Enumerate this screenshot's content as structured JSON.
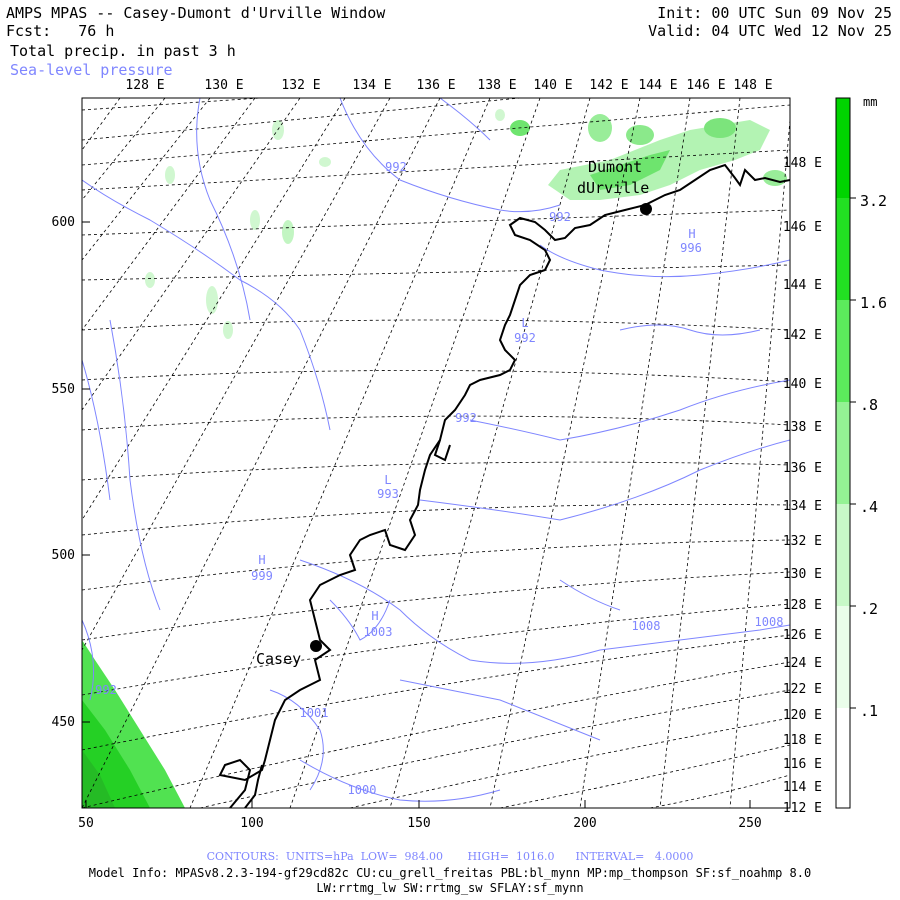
{
  "header": {
    "title": "AMPS MPAS -- Casey-Dumont d'Urville Window",
    "fcst_label": "Fcst:",
    "fcst_value": "76 h",
    "field": "Total precip. in past 3 h",
    "overlay": "Sea-level pressure",
    "init": "Init: 00 UTC Sun 09 Nov 25",
    "valid": "Valid: 04 UTC Wed 12 Nov 25"
  },
  "map": {
    "top_lon_labels": [
      "128 E",
      "130 E",
      "132 E",
      "134 E",
      "136 E",
      "138 E",
      "140 E",
      "142 E",
      "144 E",
      "146 E",
      "148 E"
    ],
    "right_lat_labels": [
      "148 E",
      "146 E",
      "144 E",
      "142 E",
      "140 E",
      "138 E",
      "136 E",
      "134 E",
      "132 E",
      "130 E",
      "128 E",
      "126 E",
      "124 E",
      "122 E",
      "120 E",
      "118 E",
      "116 E",
      "114 E",
      "112 E"
    ],
    "x_ticks": [
      "50",
      "100",
      "150",
      "200",
      "250"
    ],
    "y_ticks": [
      "600",
      "550",
      "500",
      "450"
    ],
    "stations": [
      {
        "name": "Casey"
      },
      {
        "name_line1": "Dumont",
        "name_line2": "dUrville"
      }
    ],
    "pressure_labels": [
      {
        "letter": "",
        "value": "992"
      },
      {
        "letter": "",
        "value": "992"
      },
      {
        "letter": "H",
        "value": "996"
      },
      {
        "letter": "L",
        "value": "992"
      },
      {
        "letter": "",
        "value": "992"
      },
      {
        "letter": "L",
        "value": "993"
      },
      {
        "letter": "H",
        "value": "999"
      },
      {
        "letter": "H",
        "value": "1003"
      },
      {
        "letter": "",
        "value": "1008"
      },
      {
        "letter": "",
        "value": "1008"
      },
      {
        "letter": "",
        "value": "992"
      },
      {
        "letter": "",
        "value": "1001"
      },
      {
        "letter": "",
        "value": "1000"
      }
    ]
  },
  "colorbar": {
    "unit": "mm",
    "labels": [
      "3.2",
      "1.6",
      ".8",
      ".4",
      ".2",
      ".1"
    ],
    "colors": [
      "#00d400",
      "#22e022",
      "#5ceb5c",
      "#94f294",
      "#c8f8c8",
      "#eafdea"
    ]
  },
  "footer": {
    "contours": "CONTOURS:  UNITS=hPa  LOW=  984.00       HIGH=  1016.0      INTERVAL=   4.0000",
    "model_info": "Model Info: MPASv8.2.3-194-gf29cd82c CU:cu_grell_freitas PBL:bl_mynn MP:mp_thompson SF:sf_noahmp 8.0",
    "model_info2": "LW:rrtmg_lw SW:rrtmg_sw SFLAY:sf_mynn"
  },
  "colors": {
    "contour": "#7f86ff",
    "coast": "#000000",
    "precip": "#33dd33",
    "grid": "#000000"
  }
}
